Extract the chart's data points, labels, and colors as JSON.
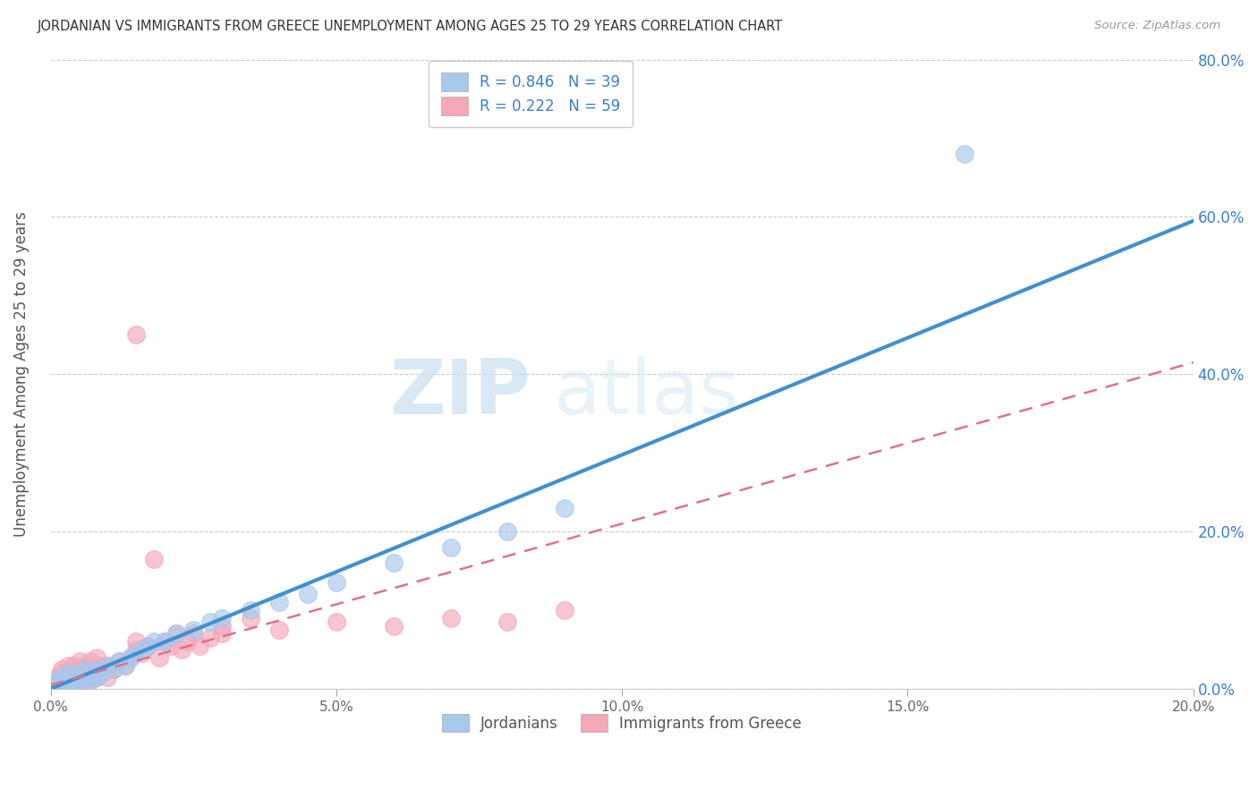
{
  "title": "JORDANIAN VS IMMIGRANTS FROM GREECE UNEMPLOYMENT AMONG AGES 25 TO 29 YEARS CORRELATION CHART",
  "source": "Source: ZipAtlas.com",
  "ylabel": "Unemployment Among Ages 25 to 29 years",
  "xlim": [
    0,
    0.2
  ],
  "ylim": [
    0,
    0.8
  ],
  "xticks": [
    0.0,
    0.05,
    0.1,
    0.15,
    0.2
  ],
  "yticks": [
    0.0,
    0.2,
    0.4,
    0.6,
    0.8
  ],
  "xticklabels": [
    "0.0%",
    "5.0%",
    "10.0%",
    "15.0%",
    "20.0%"
  ],
  "series1_color": "#A8C8EC",
  "series2_color": "#F4A8B8",
  "trend1_color": "#4090D0",
  "trend2_color": "#E07090",
  "tick_color": "#3A7FD0",
  "R1": 0.846,
  "N1": 39,
  "R2": 0.222,
  "N2": 59,
  "watermark": "ZIPatlas",
  "legend_label1": "Jordanians",
  "legend_label2": "Immigrants from Greece",
  "jordanians_x": [
    0.001,
    0.001,
    0.002,
    0.002,
    0.003,
    0.003,
    0.004,
    0.004,
    0.005,
    0.005,
    0.006,
    0.006,
    0.007,
    0.008,
    0.008,
    0.009,
    0.01,
    0.011,
    0.012,
    0.013,
    0.014,
    0.015,
    0.016,
    0.017,
    0.018,
    0.02,
    0.022,
    0.025,
    0.028,
    0.03,
    0.035,
    0.04,
    0.045,
    0.05,
    0.06,
    0.07,
    0.08,
    0.09,
    0.16
  ],
  "jordanians_y": [
    0.005,
    0.01,
    0.008,
    0.015,
    0.01,
    0.02,
    0.005,
    0.015,
    0.01,
    0.02,
    0.015,
    0.025,
    0.01,
    0.015,
    0.025,
    0.02,
    0.03,
    0.025,
    0.035,
    0.03,
    0.04,
    0.045,
    0.05,
    0.055,
    0.06,
    0.06,
    0.07,
    0.075,
    0.085,
    0.09,
    0.1,
    0.11,
    0.12,
    0.135,
    0.16,
    0.18,
    0.2,
    0.23,
    0.68
  ],
  "greece_x": [
    0.001,
    0.001,
    0.001,
    0.002,
    0.002,
    0.002,
    0.002,
    0.003,
    0.003,
    0.003,
    0.003,
    0.004,
    0.004,
    0.004,
    0.005,
    0.005,
    0.005,
    0.005,
    0.006,
    0.006,
    0.006,
    0.007,
    0.007,
    0.007,
    0.008,
    0.008,
    0.008,
    0.009,
    0.009,
    0.01,
    0.01,
    0.011,
    0.012,
    0.013,
    0.014,
    0.015,
    0.015,
    0.016,
    0.017,
    0.018,
    0.019,
    0.02,
    0.021,
    0.022,
    0.023,
    0.024,
    0.025,
    0.026,
    0.028,
    0.03,
    0.03,
    0.035,
    0.04,
    0.05,
    0.06,
    0.07,
    0.08,
    0.09,
    0.015
  ],
  "greece_y": [
    0.005,
    0.01,
    0.015,
    0.005,
    0.01,
    0.02,
    0.025,
    0.005,
    0.015,
    0.02,
    0.03,
    0.01,
    0.02,
    0.03,
    0.01,
    0.015,
    0.025,
    0.035,
    0.01,
    0.02,
    0.03,
    0.01,
    0.025,
    0.035,
    0.015,
    0.025,
    0.04,
    0.02,
    0.03,
    0.015,
    0.03,
    0.025,
    0.035,
    0.03,
    0.04,
    0.05,
    0.06,
    0.045,
    0.055,
    0.165,
    0.04,
    0.06,
    0.055,
    0.07,
    0.05,
    0.06,
    0.07,
    0.055,
    0.065,
    0.07,
    0.08,
    0.09,
    0.075,
    0.085,
    0.08,
    0.09,
    0.085,
    0.1,
    0.45
  ],
  "trend1_x": [
    0.0,
    0.2
  ],
  "trend1_y": [
    0.0,
    0.595
  ],
  "trend2_x": [
    0.0,
    0.2
  ],
  "trend2_y": [
    0.005,
    0.415
  ]
}
